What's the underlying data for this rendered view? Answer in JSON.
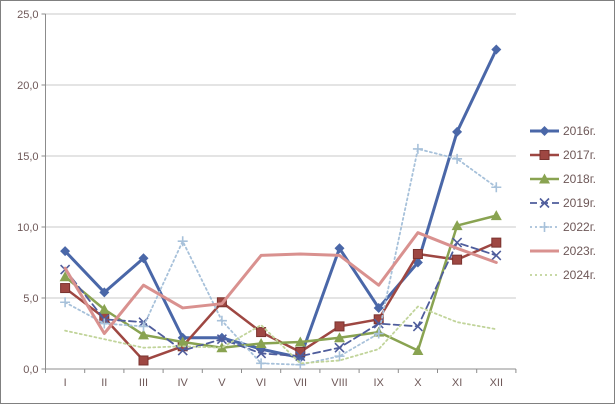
{
  "chart_data": {
    "type": "line",
    "title": "",
    "xlabel": "",
    "ylabel": "",
    "categories": [
      "I",
      "II",
      "III",
      "IV",
      "V",
      "VI",
      "VII",
      "VIII",
      "IX",
      "X",
      "XI",
      "XII"
    ],
    "yticks": [
      "0,0",
      "5,0",
      "10,0",
      "15,0",
      "20,0",
      "25,0"
    ],
    "ylim": [
      0,
      25
    ],
    "grid": true,
    "legend_position": "right",
    "grid_color": "#C8C8C8",
    "axis_color": "#8C8C8C",
    "frame_color": "#808080",
    "text_color": "#6E5858",
    "series": [
      {
        "name": "2016г.",
        "color": "#4A67A8",
        "marker": "diamond",
        "dash": "solid",
        "width": 3,
        "values": [
          8.3,
          5.4,
          7.8,
          2.2,
          2.2,
          1.4,
          0.8,
          8.5,
          4.3,
          7.5,
          16.7,
          22.5
        ]
      },
      {
        "name": "2017г.",
        "color": "#9E4742",
        "marker": "square",
        "dash": "solid",
        "width": 2.5,
        "values": [
          5.7,
          3.6,
          0.6,
          1.6,
          4.7,
          2.6,
          1.2,
          3.0,
          3.5,
          8.1,
          7.7,
          8.9
        ]
      },
      {
        "name": "2018г.",
        "color": "#89A351",
        "marker": "triangle",
        "dash": "solid",
        "width": 2.5,
        "values": [
          6.5,
          4.2,
          2.4,
          1.9,
          1.5,
          1.8,
          1.9,
          2.2,
          2.6,
          1.3,
          10.1,
          10.8
        ]
      },
      {
        "name": "2019г.",
        "color": "#4F5D9C",
        "marker": "x",
        "dash": "7 4",
        "width": 1.8,
        "values": [
          7.0,
          3.5,
          3.3,
          1.3,
          2.1,
          1.1,
          0.9,
          1.5,
          3.2,
          3.0,
          8.9,
          8.0
        ]
      },
      {
        "name": "2022г.",
        "color": "#A7C1DA",
        "marker": "plus",
        "dash": "2 3",
        "width": 1.8,
        "values": [
          4.7,
          3.2,
          3.0,
          9.0,
          3.4,
          0.4,
          0.3,
          0.9,
          2.5,
          15.5,
          14.8,
          12.8
        ]
      },
      {
        "name": "2023г.",
        "color": "#D9918F",
        "marker": "none",
        "dash": "solid",
        "width": 3,
        "values": [
          7.1,
          2.5,
          5.9,
          4.3,
          4.6,
          8.0,
          8.1,
          8.0,
          5.9,
          9.6,
          8.5,
          7.5
        ]
      },
      {
        "name": "2024г.",
        "color": "#C1D49A",
        "marker": "none",
        "dash": "2 3",
        "width": 1.8,
        "values": [
          2.7,
          2.1,
          1.5,
          1.6,
          1.5,
          3.1,
          0.4,
          0.6,
          1.4,
          4.4,
          3.3,
          2.8
        ]
      }
    ]
  }
}
